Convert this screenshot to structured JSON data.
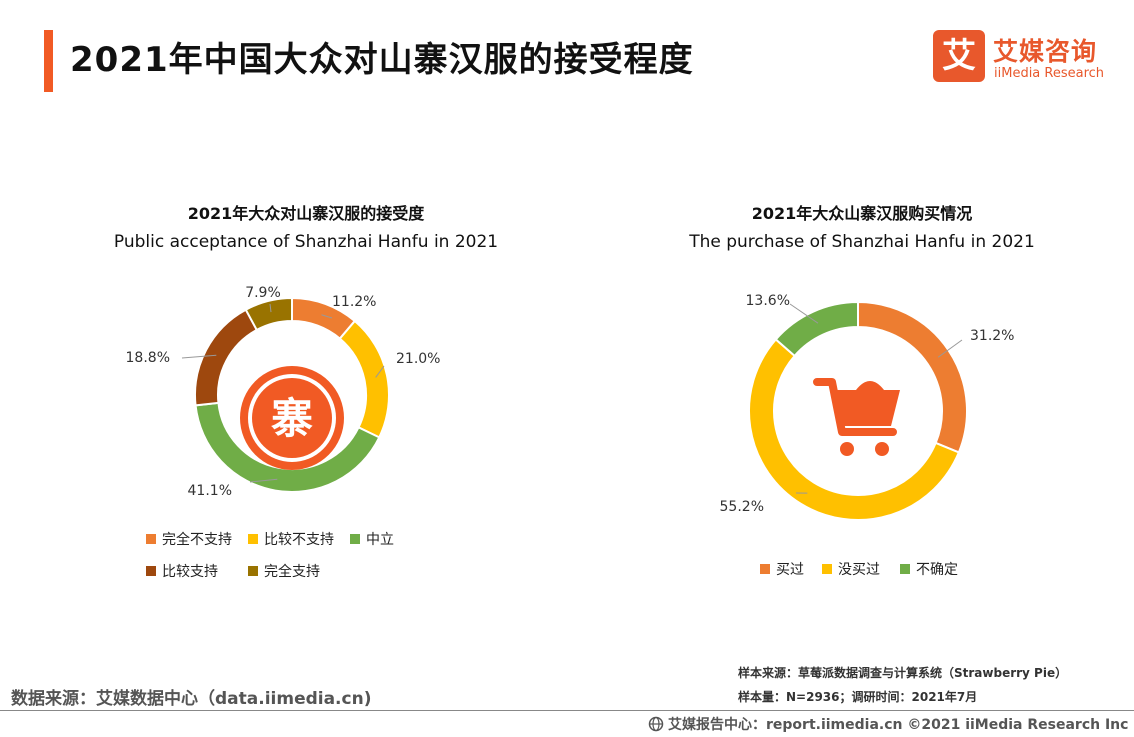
{
  "header": {
    "title": "2021年中国大众对山寨汉服的接受程度",
    "brand_cn": "艾媒咨询",
    "brand_en": "iiMedia Research",
    "brand_glyph": "艾",
    "accent_color": "#f15a24"
  },
  "chart_data": [
    {
      "type": "donut",
      "title_cn": "2021年大众对山寨汉服的接受度",
      "title_en": "Public acceptance of Shanzhai Hanfu in 2021",
      "center_glyph": "寨",
      "unit": "%",
      "slices": [
        {
          "label": "完全不支持",
          "value": 11.2,
          "display": "11.2%",
          "color": "#ed7d31"
        },
        {
          "label": "比较不支持",
          "value": 21.0,
          "display": "21.0%",
          "color": "#ffc000"
        },
        {
          "label": "中立",
          "value": 41.1,
          "display": "41.1%",
          "color": "#70ad47"
        },
        {
          "label": "比较支持",
          "value": 18.8,
          "display": "18.8%",
          "color": "#9e480e"
        },
        {
          "label": "完全支持",
          "value": 7.9,
          "display": "7.9%",
          "color": "#997300"
        }
      ]
    },
    {
      "type": "donut",
      "title_cn": "2021年大众山寨汉服购买情况",
      "title_en": "The purchase of Shanzhai Hanfu in 2021",
      "center_icon": "shopping-cart-icon",
      "unit": "%",
      "slices": [
        {
          "label": "买过",
          "value": 31.2,
          "display": "31.2%",
          "color": "#ed7d31"
        },
        {
          "label": "没买过",
          "value": 55.2,
          "display": "55.2%",
          "color": "#ffc000"
        },
        {
          "label": "不确定",
          "value": 13.6,
          "display": "13.6%",
          "color": "#70ad47"
        }
      ]
    }
  ],
  "footer": {
    "source_left": "数据来源：艾媒数据中心（data.iimedia.cn)",
    "sample_source": "样本来源：草莓派数据调查与计算系统（Strawberry Pie）",
    "sample_size": "样本量：N=2936；调研时间：2021年7月",
    "report_center": "艾媒报告中心：report.iimedia.cn   ©2021  iiMedia Research  Inc"
  }
}
